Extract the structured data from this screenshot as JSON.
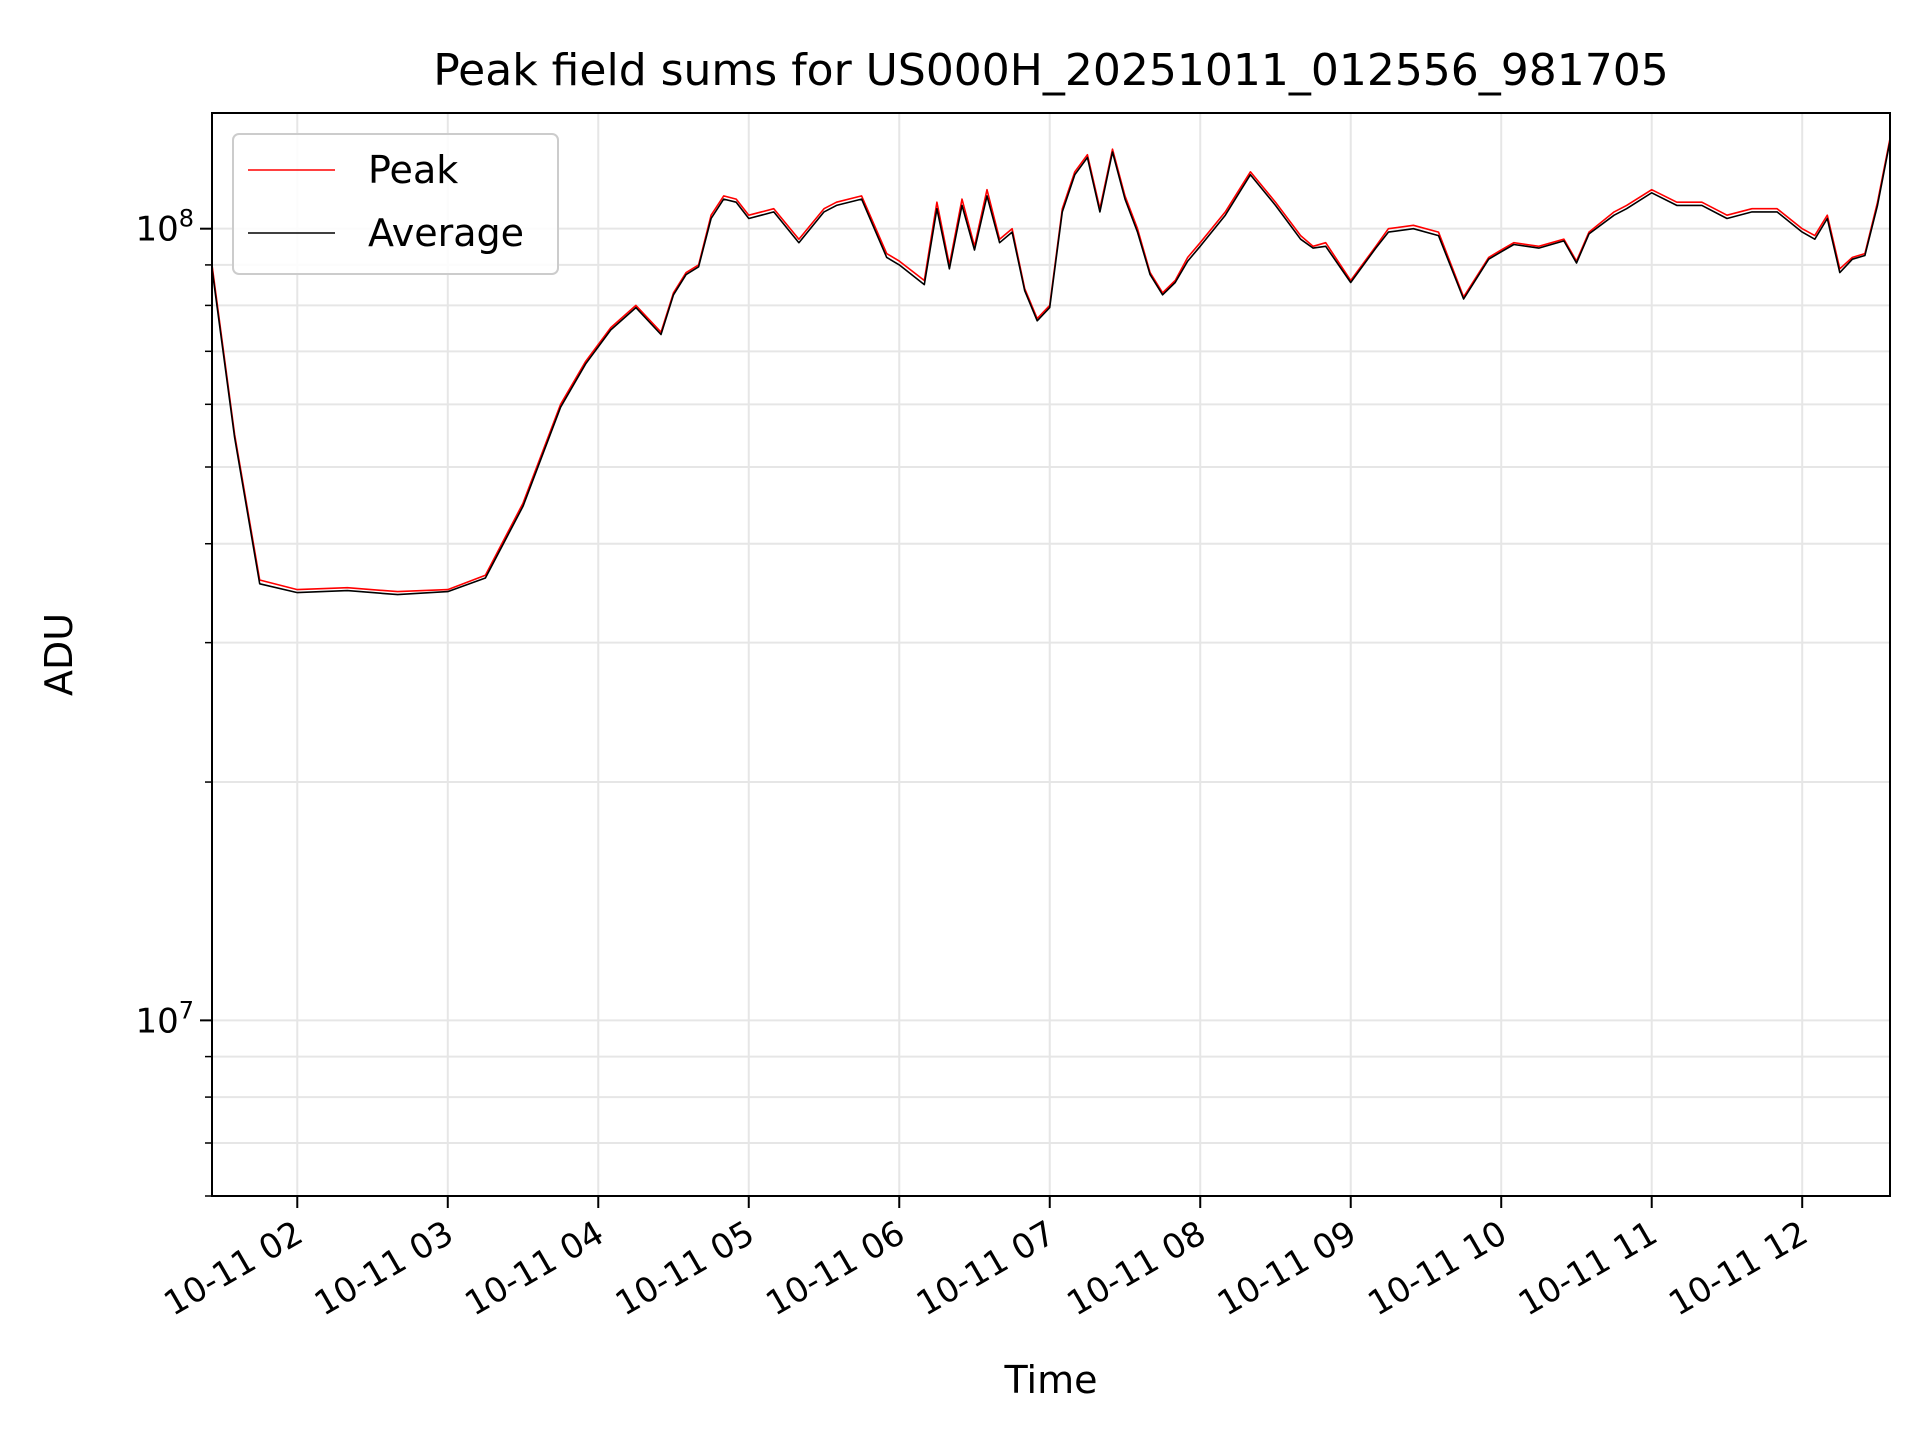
{
  "chart_data": {
    "type": "line",
    "title": "Peak field sums for US000H_20251011_012556_981705",
    "xlabel": "Time",
    "ylabel": "ADU",
    "yscale": "log",
    "ylim": [
      6000000,
      140000000
    ],
    "xlim": [
      "2025-10-11 01:26",
      "2025-10-11 12:35"
    ],
    "grid": true,
    "legend_position": "upper left",
    "x_tick_labels": [
      "10-11 02",
      "10-11 03",
      "10-11 04",
      "10-11 05",
      "10-11 06",
      "10-11 07",
      "10-11 08",
      "10-11 09",
      "10-11 10",
      "10-11 11",
      "10-11 12"
    ],
    "x_ticks": [
      "2025-10-11 02:00",
      "2025-10-11 03:00",
      "2025-10-11 04:00",
      "2025-10-11 05:00",
      "2025-10-11 06:00",
      "2025-10-11 07:00",
      "2025-10-11 08:00",
      "2025-10-11 09:00",
      "2025-10-11 10:00",
      "2025-10-11 11:00",
      "2025-10-11 12:00"
    ],
    "y_major_ticks": [
      10000000,
      100000000
    ],
    "y_major_tick_labels": [
      {
        "base": "10",
        "exp": "7"
      },
      {
        "base": "10",
        "exp": "8"
      }
    ],
    "y_minor_ticks": [
      6000000,
      7000000,
      8000000,
      9000000,
      20000000,
      30000000,
      40000000,
      50000000,
      60000000,
      70000000,
      80000000,
      90000000
    ],
    "x": [
      "01:26",
      "01:35",
      "01:45",
      "02:00",
      "02:20",
      "02:40",
      "03:00",
      "03:15",
      "03:30",
      "03:45",
      "03:55",
      "04:05",
      "04:15",
      "04:25",
      "04:30",
      "04:35",
      "04:40",
      "04:45",
      "04:50",
      "04:55",
      "05:00",
      "05:10",
      "05:20",
      "05:30",
      "05:35",
      "05:45",
      "05:55",
      "06:00",
      "06:10",
      "06:15",
      "06:20",
      "06:25",
      "06:30",
      "06:35",
      "06:40",
      "06:45",
      "06:50",
      "06:55",
      "07:00",
      "07:05",
      "07:10",
      "07:15",
      "07:20",
      "07:25",
      "07:30",
      "07:35",
      "07:40",
      "07:45",
      "07:50",
      "07:55",
      "08:00",
      "08:10",
      "08:20",
      "08:30",
      "08:40",
      "08:45",
      "08:50",
      "09:00",
      "09:10",
      "09:15",
      "09:25",
      "09:35",
      "09:45",
      "09:55",
      "10:00",
      "10:05",
      "10:15",
      "10:25",
      "10:30",
      "10:35",
      "10:45",
      "10:50",
      "11:00",
      "11:10",
      "11:20",
      "11:30",
      "11:40",
      "11:50",
      "12:00",
      "12:05",
      "12:10",
      "12:15",
      "12:20",
      "12:25",
      "12:30",
      "12:35"
    ],
    "series": [
      {
        "name": "Peak",
        "color": "#ff0000",
        "values": [
          90000000,
          55000000,
          36000000,
          35000000,
          35200000,
          34800000,
          35000000,
          36500000,
          45000000,
          60000000,
          68000000,
          75000000,
          80000000,
          74000000,
          83000000,
          88000000,
          90000000,
          104000000,
          110000000,
          109000000,
          104000000,
          106000000,
          97000000,
          106000000,
          108000000,
          110000000,
          93000000,
          91000000,
          86000000,
          108000000,
          90000000,
          109000000,
          95000000,
          112000000,
          97000000,
          100000000,
          84000000,
          77000000,
          80000000,
          106000000,
          118000000,
          124000000,
          106000000,
          126000000,
          110000000,
          100000000,
          88000000,
          83000000,
          86000000,
          92000000,
          96000000,
          105000000,
          118000000,
          108000000,
          98000000,
          95000000,
          96000000,
          86000000,
          95000000,
          100000000,
          101000000,
          99000000,
          82000000,
          92000000,
          94000000,
          96000000,
          95000000,
          97000000,
          91000000,
          99000000,
          105000000,
          107000000,
          112000000,
          108000000,
          108000000,
          104000000,
          106000000,
          106000000,
          100000000,
          98000000,
          104000000,
          89000000,
          92000000,
          93000000,
          108000000,
          130000000
        ]
      },
      {
        "name": "Average",
        "color": "#000000",
        "values": [
          89000000,
          54500000,
          35600000,
          34700000,
          34900000,
          34500000,
          34800000,
          36200000,
          44600000,
          59500000,
          67500000,
          74500000,
          79500000,
          73500000,
          82500000,
          87500000,
          89500000,
          103000000,
          109000000,
          108000000,
          103000000,
          105000000,
          96000000,
          105000000,
          107000000,
          109000000,
          92000000,
          90000000,
          85000000,
          106000000,
          89000000,
          107000000,
          94000000,
          110000000,
          96000000,
          99000000,
          83500000,
          76500000,
          79500000,
          105000000,
          117000000,
          123000000,
          105000000,
          125000000,
          109000000,
          99000000,
          87500000,
          82500000,
          85500000,
          91000000,
          95000000,
          104000000,
          117000000,
          107000000,
          97000000,
          94500000,
          95000000,
          85500000,
          94500000,
          99000000,
          100000000,
          98000000,
          81500000,
          91500000,
          93500000,
          95500000,
          94500000,
          96500000,
          90500000,
          98500000,
          104000000,
          106000000,
          111000000,
          107000000,
          107000000,
          103000000,
          105000000,
          105000000,
          99000000,
          97000000,
          103000000,
          88000000,
          91500000,
          92500000,
          107000000,
          129000000
        ]
      }
    ]
  }
}
